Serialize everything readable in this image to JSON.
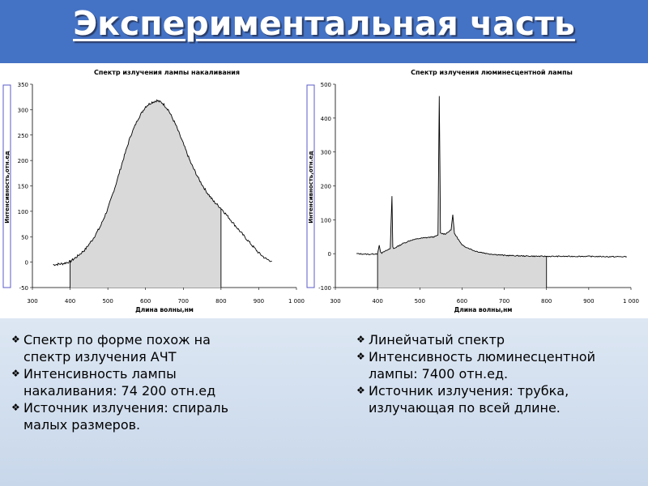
{
  "slide": {
    "title": "Экспериментальная часть",
    "colors": {
      "header": "#4472c4",
      "panel": "#d7e2f0",
      "fill": "#d9d9d9",
      "line": "#000000"
    }
  },
  "chart_data": [
    {
      "type": "area",
      "title": "Спектр излучения лампы накаливания",
      "xlabel": "Длина волны,нм",
      "ylabel": "Интенсивность,отн.ед",
      "xlim": [
        300,
        1000
      ],
      "ylim": [
        -50,
        350
      ],
      "xticks": [
        "300",
        "400",
        "500",
        "600",
        "700",
        "800",
        "900",
        "1 000"
      ],
      "yticks": [
        "350",
        "300",
        "250",
        "200",
        "150",
        "100",
        "50",
        "0",
        "-50"
      ],
      "shaded_range": [
        400,
        800
      ],
      "x": [
        355,
        380,
        400,
        420,
        440,
        460,
        480,
        500,
        520,
        540,
        560,
        580,
        600,
        615,
        630,
        645,
        660,
        680,
        700,
        720,
        740,
        760,
        780,
        800,
        820,
        840,
        860,
        880,
        900,
        920,
        935
      ],
      "y": [
        -5,
        -3,
        1,
        12,
        25,
        45,
        70,
        105,
        150,
        200,
        248,
        282,
        306,
        314,
        318,
        313,
        300,
        270,
        233,
        195,
        165,
        140,
        120,
        106,
        88,
        70,
        52,
        35,
        18,
        6,
        2
      ]
    },
    {
      "type": "area",
      "title": "Спектр излучения люминесцентной лампы",
      "xlabel": "Длина волны,нм",
      "ylabel": "Интенсивность,отн.ед",
      "xlim": [
        300,
        1000
      ],
      "ylim": [
        -100,
        500
      ],
      "xticks": [
        "300",
        "400",
        "500",
        "600",
        "700",
        "800",
        "900",
        "1 000"
      ],
      "yticks": [
        "500",
        "400",
        "300",
        "200",
        "100",
        "0",
        "-100"
      ],
      "shaded_range": [
        400,
        800
      ],
      "x": [
        350,
        380,
        400,
        404,
        407,
        410,
        430,
        434,
        436,
        438,
        460,
        480,
        500,
        520,
        535,
        543,
        546,
        549,
        560,
        574,
        578,
        582,
        600,
        630,
        660,
        700,
        750,
        800,
        850,
        900,
        950,
        990
      ],
      "y": [
        0,
        -2,
        0,
        25,
        5,
        2,
        15,
        170,
        20,
        15,
        30,
        40,
        45,
        48,
        50,
        55,
        465,
        60,
        58,
        70,
        115,
        60,
        25,
        8,
        0,
        -5,
        -7,
        -8,
        -8,
        -8,
        -9,
        -9
      ]
    }
  ],
  "bullets_left": [
    {
      "mark": "❖",
      "lines": [
        "Спектр по форме похож на",
        "спектр излучения АЧТ"
      ]
    },
    {
      "mark": "❖",
      "lines": [
        "Интенсивность лампы",
        "накаливания: 74 200 отн.ед"
      ]
    },
    {
      "mark": "❖",
      "lines": [
        "Источник излучения: спираль",
        "малых размеров."
      ]
    }
  ],
  "bullets_right": [
    {
      "mark": "❖",
      "lines": [
        "Линейчатый спектр"
      ]
    },
    {
      "mark": "❖",
      "lines": [
        "Интенсивность люминесцентной",
        "лампы: 7400 отн.ед."
      ]
    },
    {
      "mark": "❖",
      "lines": [
        "Источник излучения: трубка,",
        "излучающая по всей длине."
      ]
    }
  ]
}
